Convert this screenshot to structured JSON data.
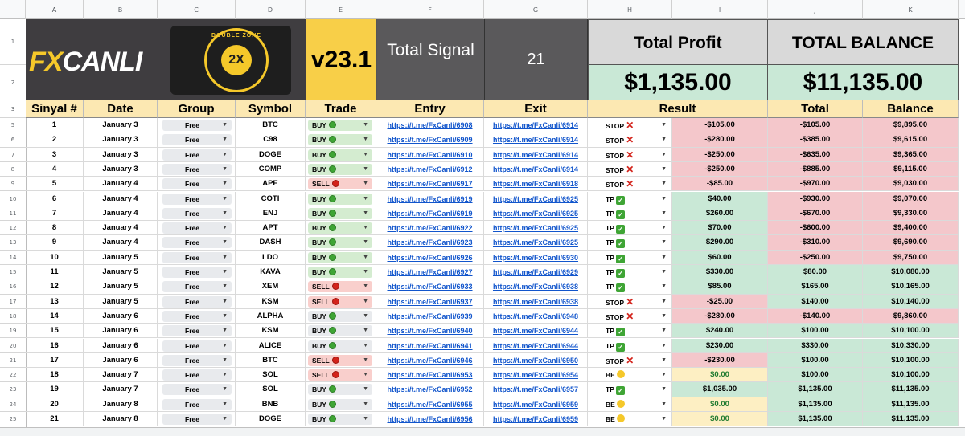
{
  "columns": [
    "A",
    "B",
    "C",
    "D",
    "E",
    "F",
    "G",
    "H",
    "I",
    "J",
    "K"
  ],
  "row_numbers": [
    "1",
    "2",
    "3",
    "5",
    "6",
    "7",
    "8",
    "9",
    "10",
    "11",
    "12",
    "13",
    "14",
    "15",
    "16",
    "17",
    "18",
    "19",
    "20",
    "21",
    "22",
    "23",
    "24",
    "25"
  ],
  "header": {
    "logo_fx": "FX",
    "logo_canli": "CANLI",
    "badge_text": "DOUBLE ZONE",
    "badge_mark": "2X",
    "version": "v23.1",
    "total_signal_label": "Total Signal",
    "total_signal_value": "21",
    "total_profit_label": "Total Profit",
    "total_profit_value": "$1,135.00",
    "total_balance_label": "TOTAL BALANCE",
    "total_balance_value": "$11,135.00"
  },
  "table_headers": {
    "sinyal": "Sinyal #",
    "date": "Date",
    "group": "Group",
    "symbol": "Symbol",
    "trade": "Trade",
    "entry": "Entry",
    "exit": "Exit",
    "result": "Result",
    "total": "Total",
    "balance": "Balance"
  },
  "rows": [
    {
      "n": "1",
      "date": "January 3",
      "group": "Free",
      "symbol": "BTC",
      "trade": "BUY",
      "trade_style": "buy",
      "entry": "https://t.me/FxCanli/6908",
      "exit": "https://t.me/FxCanli/6914",
      "result": "STOP",
      "result_type": "stop",
      "pnl": "-$105.00",
      "total": "-$105.00",
      "balance": "$9,895.00"
    },
    {
      "n": "2",
      "date": "January 3",
      "group": "Free",
      "symbol": "C98",
      "trade": "BUY",
      "trade_style": "buy",
      "entry": "https://t.me/FxCanli/6909",
      "exit": "https://t.me/FxCanli/6914",
      "result": "STOP",
      "result_type": "stop",
      "pnl": "-$280.00",
      "total": "-$385.00",
      "balance": "$9,615.00"
    },
    {
      "n": "3",
      "date": "January 3",
      "group": "Free",
      "symbol": "DOGE",
      "trade": "BUY",
      "trade_style": "buy",
      "entry": "https://t.me/FxCanli/6910",
      "exit": "https://t.me/FxCanli/6914",
      "result": "STOP",
      "result_type": "stop",
      "pnl": "-$250.00",
      "total": "-$635.00",
      "balance": "$9,365.00"
    },
    {
      "n": "4",
      "date": "January 3",
      "group": "Free",
      "symbol": "COMP",
      "trade": "BUY",
      "trade_style": "buy",
      "entry": "https://t.me/FxCanli/6912",
      "exit": "https://t.me/FxCanli/6914",
      "result": "STOP",
      "result_type": "stop",
      "pnl": "-$250.00",
      "total": "-$885.00",
      "balance": "$9,115.00"
    },
    {
      "n": "5",
      "date": "January 4",
      "group": "Free",
      "symbol": "APE",
      "trade": "SELL",
      "trade_style": "sell",
      "entry": "https://t.me/FxCanli/6917",
      "exit": "https://t.me/FxCanli/6918",
      "result": "STOP",
      "result_type": "stop",
      "pnl": "-$85.00",
      "total": "-$970.00",
      "balance": "$9,030.00"
    },
    {
      "n": "6",
      "date": "January 4",
      "group": "Free",
      "symbol": "COTI",
      "trade": "BUY",
      "trade_style": "buy",
      "entry": "https://t.me/FxCanli/6919",
      "exit": "https://t.me/FxCanli/6925",
      "result": "TP",
      "result_type": "tp",
      "pnl": "$40.00",
      "total": "-$930.00",
      "balance": "$9,070.00"
    },
    {
      "n": "7",
      "date": "January 4",
      "group": "Free",
      "symbol": "ENJ",
      "trade": "BUY",
      "trade_style": "buy",
      "entry": "https://t.me/FxCanli/6919",
      "exit": "https://t.me/FxCanli/6925",
      "result": "TP",
      "result_type": "tp",
      "pnl": "$260.00",
      "total": "-$670.00",
      "balance": "$9,330.00"
    },
    {
      "n": "8",
      "date": "January 4",
      "group": "Free",
      "symbol": "APT",
      "trade": "BUY",
      "trade_style": "buy",
      "entry": "https://t.me/FxCanli/6922",
      "exit": "https://t.me/FxCanli/6925",
      "result": "TP",
      "result_type": "tp",
      "pnl": "$70.00",
      "total": "-$600.00",
      "balance": "$9,400.00"
    },
    {
      "n": "9",
      "date": "January 4",
      "group": "Free",
      "symbol": "DASH",
      "trade": "BUY",
      "trade_style": "buy",
      "entry": "https://t.me/FxCanli/6923",
      "exit": "https://t.me/FxCanli/6925",
      "result": "TP",
      "result_type": "tp",
      "pnl": "$290.00",
      "total": "-$310.00",
      "balance": "$9,690.00"
    },
    {
      "n": "10",
      "date": "January 5",
      "group": "Free",
      "symbol": "LDO",
      "trade": "BUY",
      "trade_style": "buy",
      "entry": "https://t.me/FxCanli/6926",
      "exit": "https://t.me/FxCanli/6930",
      "result": "TP",
      "result_type": "tp",
      "pnl": "$60.00",
      "total": "-$250.00",
      "balance": "$9,750.00"
    },
    {
      "n": "11",
      "date": "January 5",
      "group": "Free",
      "symbol": "KAVA",
      "trade": "BUY",
      "trade_style": "buy",
      "entry": "https://t.me/FxCanli/6927",
      "exit": "https://t.me/FxCanli/6929",
      "result": "TP",
      "result_type": "tp",
      "pnl": "$330.00",
      "total": "$80.00",
      "balance": "$10,080.00"
    },
    {
      "n": "12",
      "date": "January 5",
      "group": "Free",
      "symbol": "XEM",
      "trade": "SELL",
      "trade_style": "sell",
      "entry": "https://t.me/FxCanli/6933",
      "exit": "https://t.me/FxCanli/6938",
      "result": "TP",
      "result_type": "tp",
      "pnl": "$85.00",
      "total": "$165.00",
      "balance": "$10,165.00"
    },
    {
      "n": "13",
      "date": "January 5",
      "group": "Free",
      "symbol": "KSM",
      "trade": "SELL",
      "trade_style": "sell",
      "entry": "https://t.me/FxCanli/6937",
      "exit": "https://t.me/FxCanli/6938",
      "result": "STOP",
      "result_type": "stop",
      "pnl": "-$25.00",
      "total": "$140.00",
      "balance": "$10,140.00"
    },
    {
      "n": "14",
      "date": "January 6",
      "group": "Free",
      "symbol": "ALPHA",
      "trade": "BUY",
      "trade_style": "buyplain",
      "entry": "https://t.me/FxCanli/6939",
      "exit": "https://t.me/FxCanli/6948",
      "result": "STOP",
      "result_type": "stop",
      "pnl": "-$280.00",
      "total": "-$140.00",
      "balance": "$9,860.00"
    },
    {
      "n": "15",
      "date": "January 6",
      "group": "Free",
      "symbol": "KSM",
      "trade": "BUY",
      "trade_style": "buyplain",
      "entry": "https://t.me/FxCanli/6940",
      "exit": "https://t.me/FxCanli/6944",
      "result": "TP",
      "result_type": "tp",
      "pnl": "$240.00",
      "total": "$100.00",
      "balance": "$10,100.00"
    },
    {
      "n": "16",
      "date": "January 6",
      "group": "Free",
      "symbol": "ALICE",
      "trade": "BUY",
      "trade_style": "buyplain",
      "entry": "https://t.me/FxCanli/6941",
      "exit": "https://t.me/FxCanli/6944",
      "result": "TP",
      "result_type": "tp",
      "pnl": "$230.00",
      "total": "$330.00",
      "balance": "$10,330.00"
    },
    {
      "n": "17",
      "date": "January 6",
      "group": "Free",
      "symbol": "BTC",
      "trade": "SELL",
      "trade_style": "sell",
      "entry": "https://t.me/FxCanli/6946",
      "exit": "https://t.me/FxCanli/6950",
      "result": "STOP",
      "result_type": "stop",
      "pnl": "-$230.00",
      "total": "$100.00",
      "balance": "$10,100.00"
    },
    {
      "n": "18",
      "date": "January 7",
      "group": "Free",
      "symbol": "SOL",
      "trade": "SELL",
      "trade_style": "sell",
      "entry": "https://t.me/FxCanli/6953",
      "exit": "https://t.me/FxCanli/6954",
      "result": "BE",
      "result_type": "be",
      "pnl": "$0.00",
      "total": "$100.00",
      "balance": "$10,100.00"
    },
    {
      "n": "19",
      "date": "January 7",
      "group": "Free",
      "symbol": "SOL",
      "trade": "BUY",
      "trade_style": "buyplain",
      "entry": "https://t.me/FxCanli/6952",
      "exit": "https://t.me/FxCanli/6957",
      "result": "TP",
      "result_type": "tp",
      "pnl": "$1,035.00",
      "total": "$1,135.00",
      "balance": "$11,135.00"
    },
    {
      "n": "20",
      "date": "January 8",
      "group": "Free",
      "symbol": "BNB",
      "trade": "BUY",
      "trade_style": "buyplain",
      "entry": "https://t.me/FxCanli/6955",
      "exit": "https://t.me/FxCanli/6959",
      "result": "BE",
      "result_type": "be",
      "pnl": "$0.00",
      "total": "$1,135.00",
      "balance": "$11,135.00"
    },
    {
      "n": "21",
      "date": "January 8",
      "group": "Free",
      "symbol": "DOGE",
      "trade": "BUY",
      "trade_style": "buyplain",
      "entry": "https://t.me/FxCanli/6956",
      "exit": "https://t.me/FxCanli/6959",
      "result": "BE",
      "result_type": "be",
      "pnl": "$0.00",
      "total": "$1,135.00",
      "balance": "$11,135.00"
    }
  ]
}
